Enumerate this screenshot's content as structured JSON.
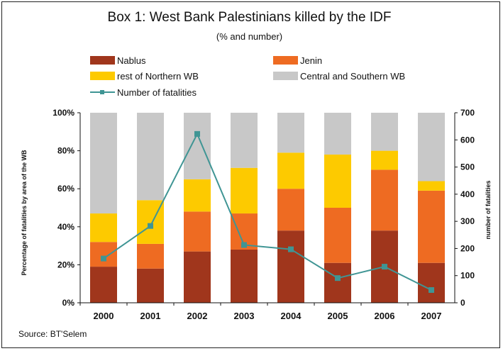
{
  "chart_data": {
    "type": "bar",
    "stacked": true,
    "title": "Box 1: West Bank Palestinians killed by the IDF",
    "subtitle": "(% and number)",
    "ylabel": "Percentage of fatalities by area of the WB",
    "y2label": "number of fatalities",
    "ylim": [
      0,
      100
    ],
    "y2lim": [
      0,
      700
    ],
    "ytick_labels": [
      "0%",
      "20%",
      "40%",
      "60%",
      "80%",
      "100%"
    ],
    "y2tick_labels": [
      "0",
      "100",
      "200",
      "300",
      "400",
      "500",
      "600",
      "700"
    ],
    "categories": [
      "2000",
      "2001",
      "2002",
      "2003",
      "2004",
      "2005",
      "2006",
      "2007"
    ],
    "series": [
      {
        "name": "Nablus",
        "color": "#a0361c",
        "values": [
          19,
          18,
          27,
          28,
          38,
          21,
          38,
          21
        ]
      },
      {
        "name": "Jenin",
        "color": "#ee6b22",
        "values": [
          13,
          13,
          21,
          19,
          22,
          29,
          32,
          38
        ]
      },
      {
        "name": "rest of Northern WB",
        "color": "#fdca00",
        "values": [
          15,
          23,
          17,
          24,
          19,
          28,
          10,
          5
        ]
      },
      {
        "name": "Central and Southern WB",
        "color": "#c8c8c8",
        "values": [
          53,
          46,
          35,
          29,
          21,
          22,
          20,
          36
        ]
      }
    ],
    "line_series": {
      "name": "Number of fatalities",
      "color": "#3f9594",
      "axis": "right",
      "values": [
        163,
        283,
        622,
        213,
        197,
        91,
        133,
        47
      ]
    },
    "legend_position": "top",
    "source": "Source: BT'Selem"
  }
}
